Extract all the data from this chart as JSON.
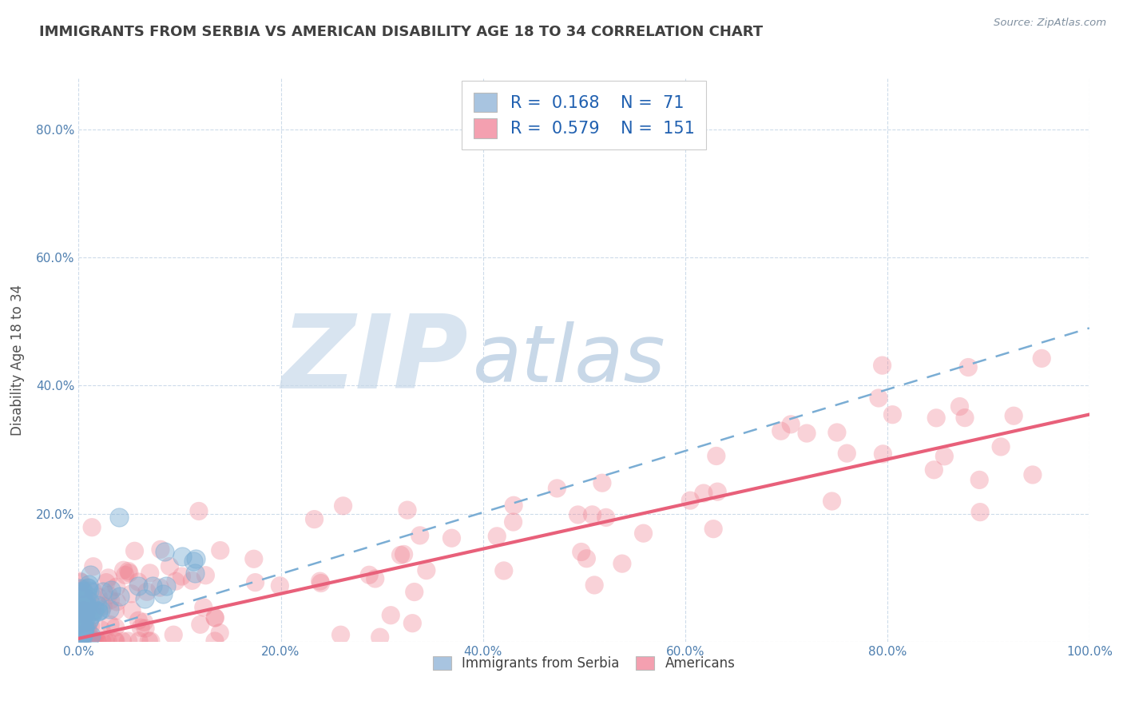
{
  "title": "IMMIGRANTS FROM SERBIA VS AMERICAN DISABILITY AGE 18 TO 34 CORRELATION CHART",
  "source_text": "Source: ZipAtlas.com",
  "ylabel": "Disability Age 18 to 34",
  "xlim": [
    0.0,
    1.0
  ],
  "ylim": [
    0.0,
    0.88
  ],
  "x_tick_labels": [
    "0.0%",
    "20.0%",
    "40.0%",
    "60.0%",
    "80.0%",
    "100.0%"
  ],
  "x_tick_values": [
    0.0,
    0.2,
    0.4,
    0.6,
    0.8,
    1.0
  ],
  "y_tick_labels": [
    "",
    "20.0%",
    "40.0%",
    "60.0%",
    "80.0%"
  ],
  "y_tick_values": [
    0.0,
    0.2,
    0.4,
    0.6,
    0.8
  ],
  "legend1_label": "Immigrants from Serbia",
  "legend2_label": "Americans",
  "r1": 0.168,
  "n1": 71,
  "r2": 0.579,
  "n2": 151,
  "color_serbia": "#a8c4e0",
  "color_american": "#f4a0b0",
  "scatter_color_serbia": "#7aadd4",
  "scatter_color_american": "#f08090",
  "trendline_color_serbia": "#7aadd4",
  "trendline_color_american": "#e8607a",
  "background_color": "#ffffff",
  "grid_color": "#c8d8e8",
  "title_color": "#404040",
  "marker_size_serbia": 280,
  "marker_size_american": 280,
  "marker_alpha_serbia": 0.45,
  "marker_alpha_american": 0.35,
  "trendline_lw_serbia": 1.8,
  "trendline_lw_american": 3.0,
  "watermark_zip_color": "#d8e4f0",
  "watermark_atlas_color": "#c8d8e8"
}
